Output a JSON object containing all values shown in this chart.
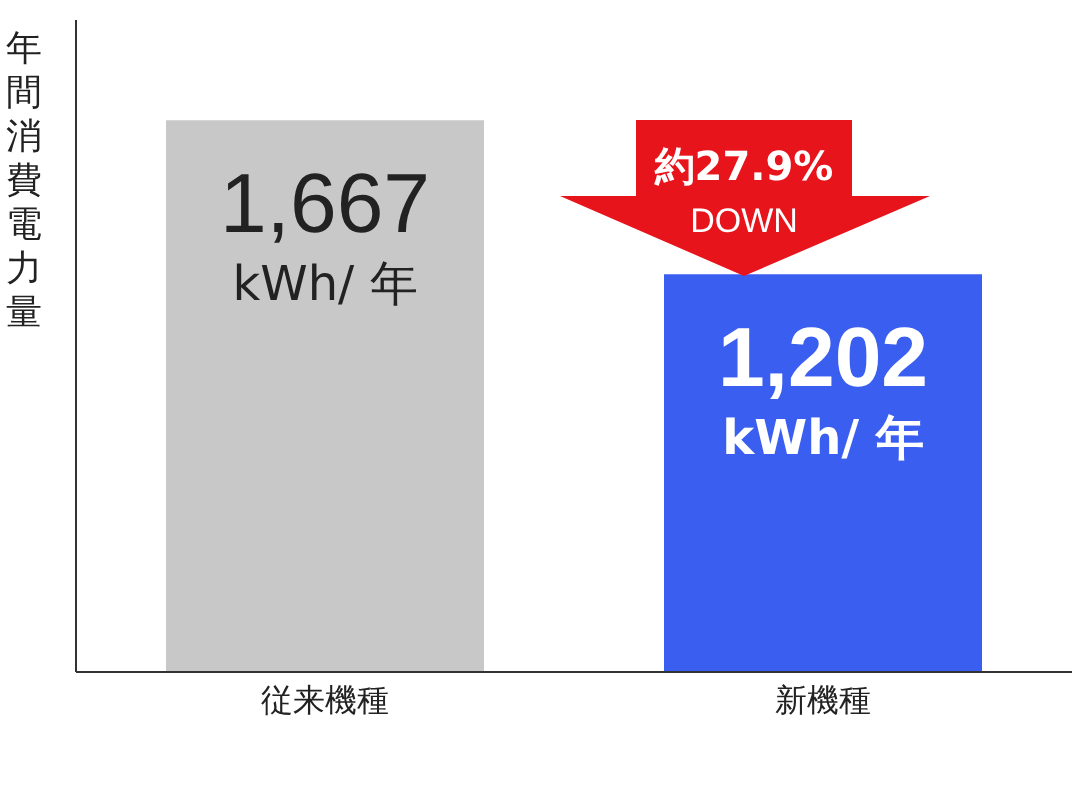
{
  "chart_data": {
    "type": "bar",
    "ylabel": "年間消費電力量",
    "categories": [
      "従来機種",
      "新機種"
    ],
    "values": [
      1667,
      1202
    ],
    "colors": [
      "#c8c8c8",
      "#3a5ff0"
    ],
    "ylim": [
      0,
      1970
    ],
    "value_labels": [
      "1,667 kWh/ 年",
      "1,202 kWh/ 年"
    ],
    "tick_labels": "x",
    "annotations": [
      "約27.9% DOWN"
    ]
  }
}
